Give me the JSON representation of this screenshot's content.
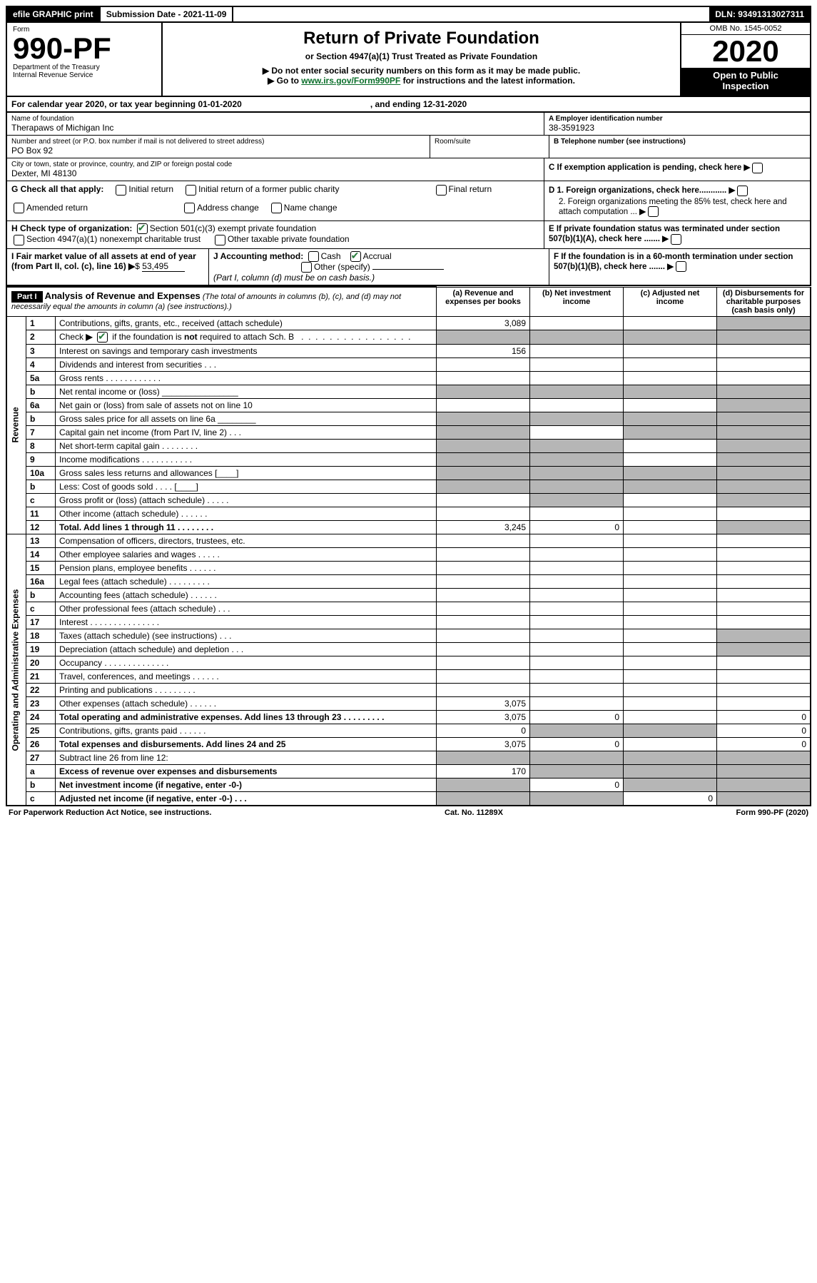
{
  "top_bar": {
    "efile": "efile GRAPHIC print",
    "submission": "Submission Date - 2021-11-09",
    "dln": "DLN: 93491313027311"
  },
  "header": {
    "form_label": "Form",
    "form_number": "990-PF",
    "dept1": "Department of the Treasury",
    "dept2": "Internal Revenue Service",
    "title": "Return of Private Foundation",
    "subtitle": "or Section 4947(a)(1) Trust Treated as Private Foundation",
    "note1": "▶ Do not enter social security numbers on this form as it may be made public.",
    "note2_pre": "▶ Go to ",
    "note2_link": "www.irs.gov/Form990PF",
    "note2_post": " for instructions and the latest information.",
    "omb": "OMB No. 1545-0052",
    "year": "2020",
    "open1": "Open to Public",
    "open2": "Inspection"
  },
  "cal_year": "For calendar year 2020, or tax year beginning 01-01-2020",
  "cal_year_end": ", and ending 12-31-2020",
  "foundation": {
    "name_label": "Name of foundation",
    "name": "Therapaws of Michigan Inc",
    "addr_label": "Number and street (or P.O. box number if mail is not delivered to street address)",
    "addr": "PO Box 92",
    "room_label": "Room/suite",
    "city_label": "City or town, state or province, country, and ZIP or foreign postal code",
    "city": "Dexter, MI  48130",
    "ein_label": "A Employer identification number",
    "ein": "38-3591923",
    "phone_label": "B Telephone number (see instructions)",
    "c_label": "C If exemption application is pending, check here",
    "d1": "D 1. Foreign organizations, check here............",
    "d2": "2. Foreign organizations meeting the 85% test, check here and attach computation ...",
    "e": "E  If private foundation status was terminated under section 507(b)(1)(A), check here .......",
    "f": "F  If the foundation is in a 60-month termination under section 507(b)(1)(B), check here .......",
    "g_label": "G Check all that apply:",
    "g_opts": [
      "Initial return",
      "Initial return of a former public charity",
      "Final return",
      "Amended return",
      "Address change",
      "Name change"
    ],
    "h_label": "H Check type of organization:",
    "h1": "Section 501(c)(3) exempt private foundation",
    "h2": "Section 4947(a)(1) nonexempt charitable trust",
    "h3": "Other taxable private foundation",
    "i_label": "I Fair market value of all assets at end of year (from Part II, col. (c), line 16)",
    "i_val": "53,495",
    "j_label": "J Accounting method:",
    "j1": "Cash",
    "j2": "Accrual",
    "j3": "Other (specify)",
    "j_note": "(Part I, column (d) must be on cash basis.)"
  },
  "part1": {
    "label": "Part I",
    "title": "Analysis of Revenue and Expenses",
    "subtitle": "(The total of amounts in columns (b), (c), and (d) may not necessarily equal the amounts in column (a) (see instructions).)",
    "col_a": "(a)   Revenue and expenses per books",
    "col_b": "(b)   Net investment income",
    "col_c": "(c)   Adjusted net income",
    "col_d": "(d)  Disbursements for charitable purposes (cash basis only)",
    "side_rev": "Revenue",
    "side_exp": "Operating and Administrative Expenses"
  },
  "rows": [
    {
      "n": "1",
      "d": "Contributions, gifts, grants, etc., received (attach schedule)",
      "a": "3,089",
      "grey": [
        "d"
      ]
    },
    {
      "n": "2",
      "d": "Check ▶ ☑ if the foundation is not required to attach Sch. B   .  .  .  .  .  .  .  .  .  .  .  .  .  .  .  .  .",
      "grey": [
        "a",
        "b",
        "c",
        "d"
      ],
      "checked": true
    },
    {
      "n": "3",
      "d": "Interest on savings and temporary cash investments",
      "a": "156"
    },
    {
      "n": "4",
      "d": "Dividends and interest from securities     .   .   ."
    },
    {
      "n": "5a",
      "d": "Gross rents     .   .   .   .   .   .   .   .   .   .   .   ."
    },
    {
      "n": "b",
      "d": "Net rental income or (loss)  ________________",
      "grey": [
        "a",
        "b",
        "c",
        "d"
      ]
    },
    {
      "n": "6a",
      "d": "Net gain or (loss) from sale of assets not on line 10",
      "grey": [
        "d"
      ]
    },
    {
      "n": "b",
      "d": "Gross sales price for all assets on line 6a ________",
      "grey": [
        "a",
        "b",
        "c",
        "d"
      ]
    },
    {
      "n": "7",
      "d": "Capital gain net income (from Part IV, line 2)   .   .   .",
      "grey": [
        "a",
        "c",
        "d"
      ]
    },
    {
      "n": "8",
      "d": "Net short-term capital gain   .   .   .   .   .   .   .   .",
      "grey": [
        "a",
        "b",
        "d"
      ]
    },
    {
      "n": "9",
      "d": "Income modifications  .   .   .   .   .   .   .   .   .   .   .",
      "grey": [
        "a",
        "b",
        "d"
      ]
    },
    {
      "n": "10a",
      "d": "Gross sales less returns and allowances   [____]",
      "grey": [
        "a",
        "b",
        "c",
        "d"
      ]
    },
    {
      "n": "b",
      "d": "Less: Cost of goods sold    .   .   .   .    [____]",
      "grey": [
        "a",
        "b",
        "c",
        "d"
      ]
    },
    {
      "n": "c",
      "d": "Gross profit or (loss) (attach schedule)    .   .   .   .   .",
      "grey": [
        "b",
        "d"
      ]
    },
    {
      "n": "11",
      "d": "Other income (attach schedule)    .   .   .   .   .   ."
    },
    {
      "n": "12",
      "d": "Total. Add lines 1 through 11   .   .   .   .   .   .   .   .",
      "a": "3,245",
      "b": "0",
      "grey": [
        "d"
      ],
      "bold": true
    },
    {
      "n": "13",
      "d": "Compensation of officers, directors, trustees, etc."
    },
    {
      "n": "14",
      "d": "Other employee salaries and wages   .   .   .   .   ."
    },
    {
      "n": "15",
      "d": "Pension plans, employee benefits  .   .   .   .   .   ."
    },
    {
      "n": "16a",
      "d": "Legal fees (attach schedule) .   .   .   .   .   .   .   .   ."
    },
    {
      "n": "b",
      "d": "Accounting fees (attach schedule)  .   .   .   .   .   ."
    },
    {
      "n": "c",
      "d": "Other professional fees (attach schedule)    .   .   ."
    },
    {
      "n": "17",
      "d": "Interest  .   .   .   .   .   .   .   .   .   .   .   .   .   .   ."
    },
    {
      "n": "18",
      "d": "Taxes (attach schedule) (see instructions)     .   .   .",
      "grey": [
        "d"
      ]
    },
    {
      "n": "19",
      "d": "Depreciation (attach schedule) and depletion   .   .   .",
      "grey": [
        "d"
      ]
    },
    {
      "n": "20",
      "d": "Occupancy .   .   .   .   .   .   .   .   .   .   .   .   .   ."
    },
    {
      "n": "21",
      "d": "Travel, conferences, and meetings  .   .   .   .   .   ."
    },
    {
      "n": "22",
      "d": "Printing and publications  .   .   .   .   .   .   .   .   ."
    },
    {
      "n": "23",
      "d": "Other expenses (attach schedule)  .   .   .   .   .   .",
      "a": "3,075"
    },
    {
      "n": "24",
      "d": "Total operating and administrative expenses. Add lines 13 through 23   .   .   .   .   .   .   .   .   .",
      "a": "3,075",
      "b": "0",
      "d_": "0",
      "bold": true
    },
    {
      "n": "25",
      "d": "Contributions, gifts, grants paid    .   .   .   .   .   .",
      "a": "0",
      "grey": [
        "b",
        "c"
      ],
      "d_": "0"
    },
    {
      "n": "26",
      "d": "Total expenses and disbursements. Add lines 24 and 25",
      "a": "3,075",
      "b": "0",
      "d_": "0",
      "bold": true
    },
    {
      "n": "27",
      "d": "Subtract line 26 from line 12:",
      "grey": [
        "a",
        "b",
        "c",
        "d"
      ]
    },
    {
      "n": "a",
      "d": "Excess of revenue over expenses and disbursements",
      "a": "170",
      "grey": [
        "b",
        "c",
        "d"
      ],
      "bold": true
    },
    {
      "n": "b",
      "d": "Net investment income (if negative, enter -0-)",
      "b": "0",
      "grey": [
        "a",
        "c",
        "d"
      ],
      "bold": true
    },
    {
      "n": "c",
      "d": "Adjusted net income (if negative, enter -0-)   .   .   .",
      "c": "0",
      "grey": [
        "a",
        "b",
        "d"
      ],
      "bold": true
    }
  ],
  "footer": {
    "left": "For Paperwork Reduction Act Notice, see instructions.",
    "mid": "Cat. No. 11289X",
    "right": "Form 990-PF (2020)"
  },
  "colors": {
    "black": "#000000",
    "white": "#ffffff",
    "grey_cell": "#b6b6b6",
    "link_green": "#0a6e2a",
    "check_green": "#2a7d3e"
  }
}
